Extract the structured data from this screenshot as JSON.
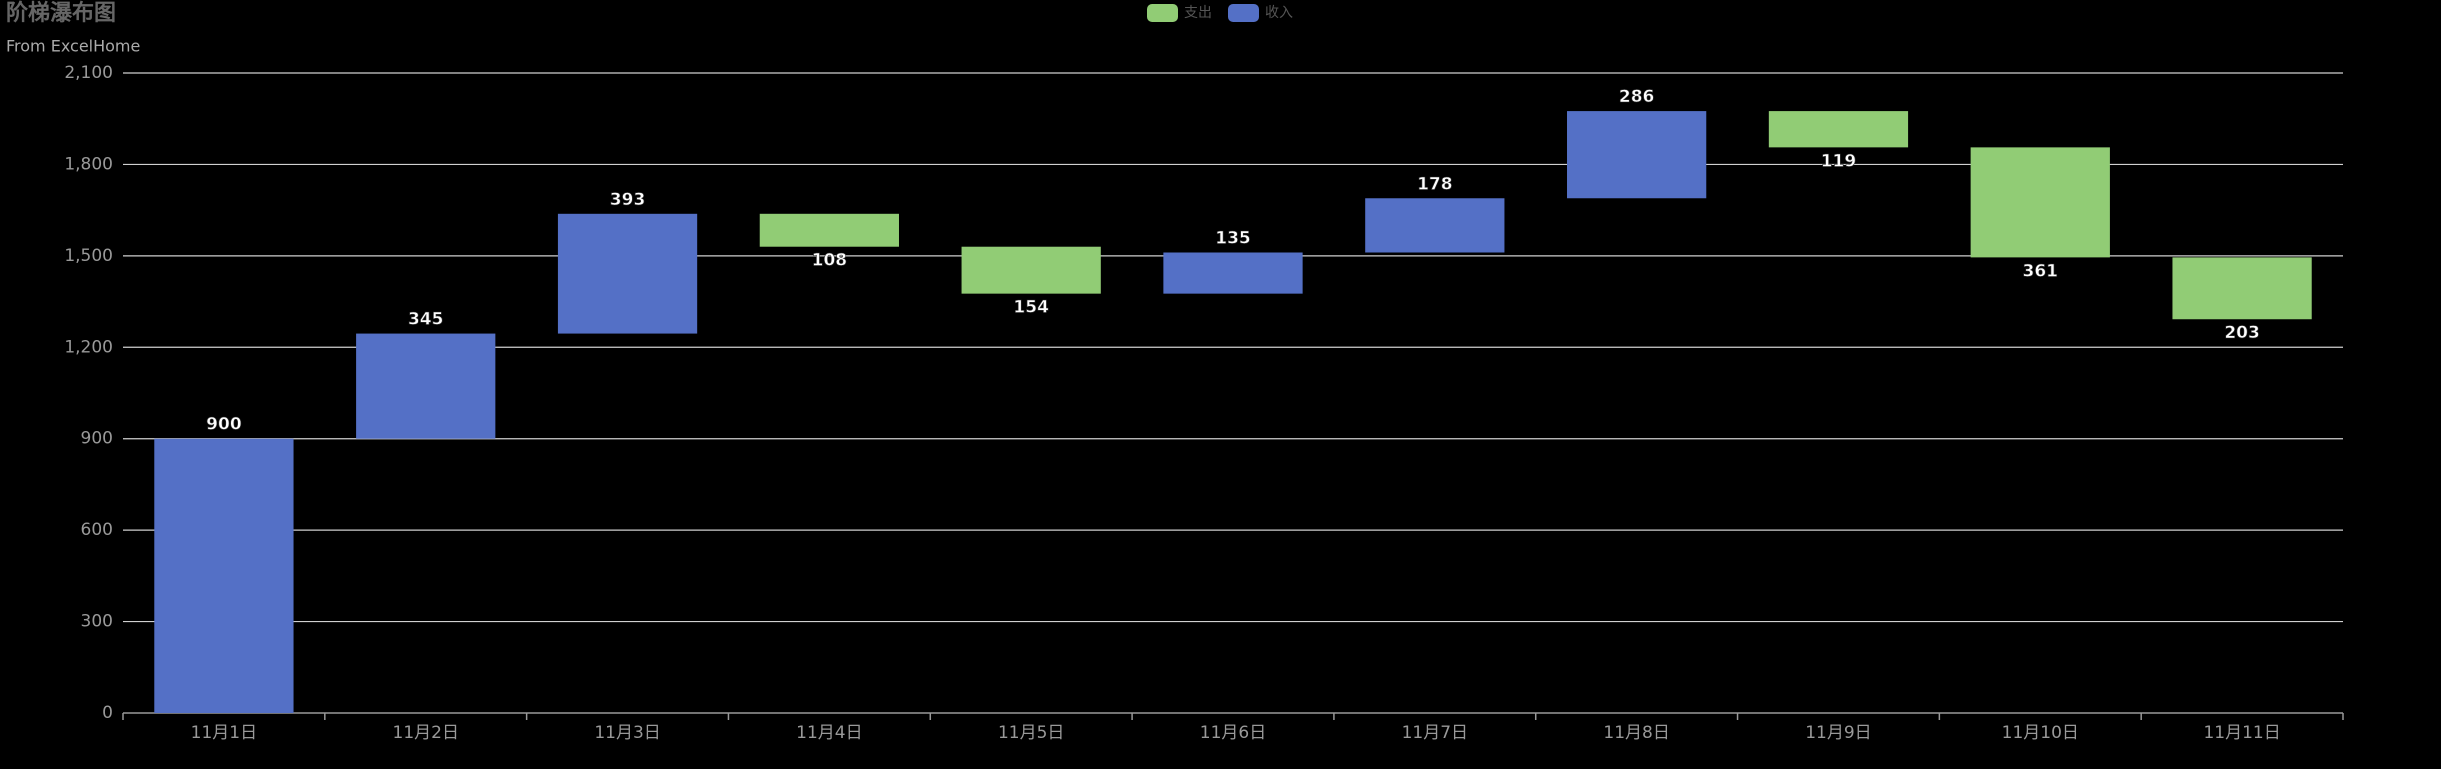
{
  "chart_data": {
    "type": "waterfall",
    "title": "阶梯瀑布图",
    "subtitle": "From ExcelHome",
    "categories": [
      "11月1日",
      "11月2日",
      "11月3日",
      "11月4日",
      "11月5日",
      "11月6日",
      "11月7日",
      "11月8日",
      "11月9日",
      "11月10日",
      "11月11日"
    ],
    "series": [
      {
        "name": "支出",
        "color": "#91cc75",
        "values": [
          null,
          null,
          null,
          108,
          154,
          null,
          null,
          null,
          119,
          361,
          203
        ]
      },
      {
        "name": "收入",
        "color": "#5470c6",
        "values": [
          900,
          345,
          393,
          null,
          null,
          135,
          178,
          286,
          null,
          null,
          null
        ]
      }
    ],
    "ylim": [
      0,
      2100
    ],
    "yticks": [
      0,
      300,
      600,
      900,
      {
        "value": 1200,
        "label": "1,200"
      },
      {
        "value": 1500,
        "label": "1,500"
      },
      {
        "value": 1800,
        "label": "1,800"
      },
      {
        "value": 2100,
        "label": "2,100"
      }
    ],
    "grid": true,
    "legend": "top"
  }
}
